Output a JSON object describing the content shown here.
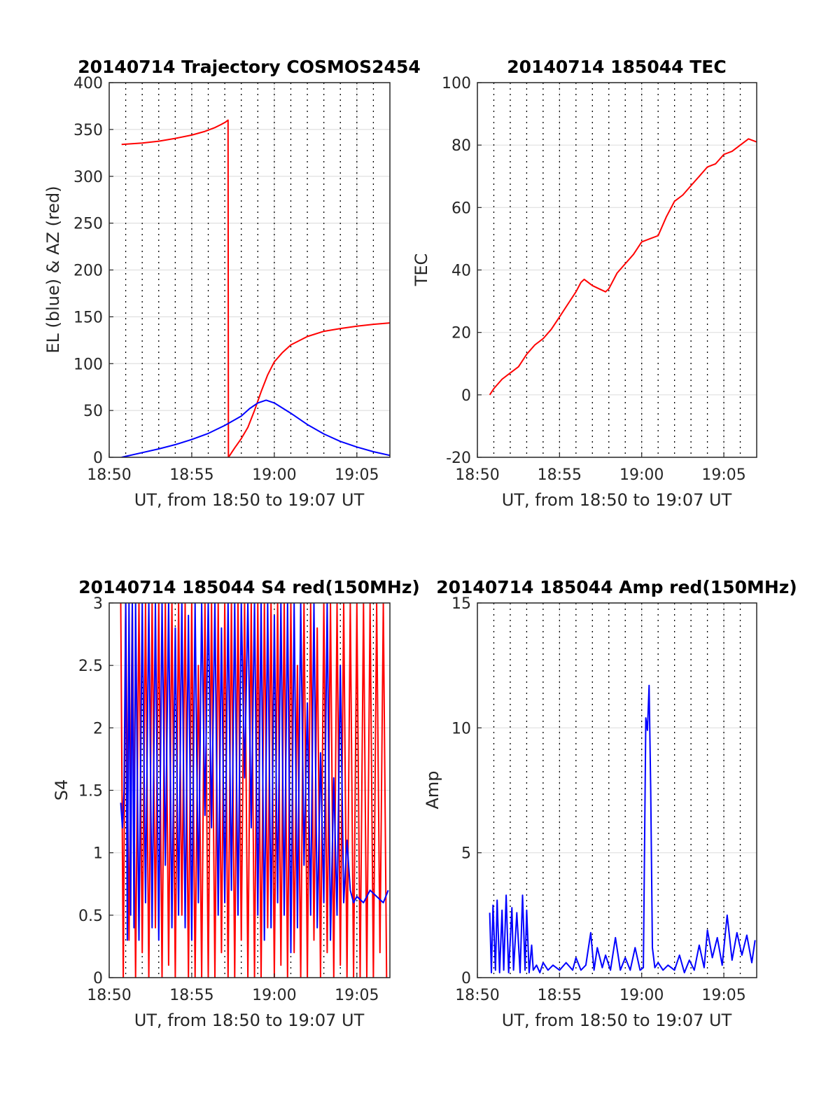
{
  "chart_data": [
    {
      "type": "line",
      "title": "20140714 Trajectory COSMOS2454",
      "xlabel": "UT, from 18:50 to 19:07 UT",
      "ylabel": "EL (blue) & AZ (red)",
      "xlim": [
        0,
        17
      ],
      "ylim": [
        0,
        400
      ],
      "xticks": [
        0,
        5,
        10,
        15
      ],
      "xtick_labels": [
        "18:50",
        "18:55",
        "19:00",
        "19:05"
      ],
      "yticks": [
        0,
        50,
        100,
        150,
        200,
        250,
        300,
        350,
        400
      ],
      "ytick_labels": [
        "0",
        "50",
        "100",
        "150",
        "200",
        "250",
        "300",
        "350",
        "400"
      ],
      "grid": true,
      "dotted_vlines_every_min": 1,
      "series": [
        {
          "color": "#ff0000",
          "x": [
            0.75,
            2,
            3,
            4,
            5,
            5.8,
            6.4,
            6.8,
            7.05,
            7.2,
            7.22,
            7.3,
            7.6,
            8.0,
            8.4,
            8.8,
            9.2,
            9.6,
            10,
            10.5,
            11,
            12,
            13,
            14,
            15,
            16,
            17
          ],
          "y": [
            334,
            335.5,
            337.5,
            340.5,
            344,
            348,
            352,
            355.5,
            358,
            360,
            0,
            2,
            10,
            20,
            32,
            50,
            70,
            88,
            102,
            112,
            120,
            129,
            134.5,
            137.5,
            140,
            142,
            143.5
          ]
        },
        {
          "color": "#0000ff",
          "x": [
            0.75,
            2,
            3,
            4,
            5,
            6,
            7,
            8,
            8.5,
            9,
            9.5,
            10,
            11,
            12,
            13,
            14,
            15,
            16,
            17
          ],
          "y": [
            0,
            5,
            9,
            13.5,
            19,
            25.5,
            34,
            44,
            52,
            58,
            61,
            58,
            47,
            35,
            25,
            17,
            11,
            6,
            2
          ]
        }
      ]
    },
    {
      "type": "line",
      "title": "20140714 185044 TEC",
      "xlabel": "UT, from 18:50 to 19:07 UT",
      "ylabel": "TEC",
      "xlim": [
        0,
        17
      ],
      "ylim": [
        -20,
        100
      ],
      "xticks": [
        0,
        5,
        10,
        15
      ],
      "xtick_labels": [
        "18:50",
        "18:55",
        "19:00",
        "19:05"
      ],
      "yticks": [
        -20,
        0,
        20,
        40,
        60,
        80,
        100
      ],
      "ytick_labels": [
        "-20",
        "0",
        "20",
        "40",
        "60",
        "80",
        "100"
      ],
      "grid": true,
      "dotted_vlines_every_min": 1,
      "series": [
        {
          "color": "#ff0000",
          "x": [
            0.75,
            1,
            1.5,
            2,
            2.5,
            3,
            3.5,
            4,
            4.5,
            5,
            5.5,
            6,
            6.3,
            6.5,
            7,
            7.4,
            7.8,
            8,
            8.5,
            9,
            9.5,
            10,
            10.5,
            11,
            11.5,
            12,
            12.5,
            13,
            13.5,
            14,
            14.5,
            15,
            15.5,
            16,
            16.5,
            17
          ],
          "y": [
            0,
            2,
            5,
            7,
            9,
            13,
            16,
            18,
            21,
            25,
            29,
            33,
            36,
            37,
            35,
            34,
            33,
            34,
            39,
            42,
            45,
            49,
            50,
            51,
            57,
            62,
            64,
            67,
            70,
            73,
            74,
            77,
            78,
            80,
            82,
            81
          ]
        }
      ]
    },
    {
      "type": "line",
      "title": "20140714 185044 S4 red(150MHz)",
      "xlabel": "UT, from 18:50 to 19:07 UT",
      "ylabel": "S4",
      "xlim": [
        0,
        17
      ],
      "ylim": [
        0,
        3
      ],
      "xticks": [
        0,
        5,
        10,
        15
      ],
      "xtick_labels": [
        "18:50",
        "18:55",
        "19:00",
        "19:05"
      ],
      "yticks": [
        0,
        0.5,
        1,
        1.5,
        2,
        2.5,
        3
      ],
      "ytick_labels": [
        "0",
        "0.5",
        "1",
        "1.5",
        "2",
        "2.5",
        "3"
      ],
      "grid": true,
      "dotted_vlines_every_min": 1,
      "series": [
        {
          "color": "#ff0000",
          "x": [
            0.7,
            0.85,
            1.0,
            1.2,
            1.4,
            1.6,
            1.8,
            2.0,
            2.2,
            2.4,
            2.6,
            2.8,
            3.0,
            3.2,
            3.4,
            3.6,
            3.8,
            4.0,
            4.2,
            4.4,
            4.6,
            4.8,
            5.0,
            5.2,
            5.4,
            5.6,
            5.8,
            6.0,
            6.2,
            6.4,
            6.6,
            6.8,
            7.0,
            7.2,
            7.4,
            7.6,
            7.8,
            8.0,
            8.2,
            8.4,
            8.6,
            8.8,
            9.0,
            9.2,
            9.4,
            9.6,
            9.8,
            10.0,
            10.2,
            10.4,
            10.6,
            10.8,
            11.0,
            11.2,
            11.4,
            11.6,
            11.8,
            12.0,
            12.2,
            12.4,
            12.6,
            12.8,
            13.0,
            13.2,
            13.4,
            13.6,
            13.8,
            14.0,
            14.2,
            14.4,
            14.6,
            14.8,
            15.0,
            15.2,
            15.4,
            15.6,
            15.8,
            16.0,
            16.2,
            16.4,
            16.6,
            16.8
          ],
          "y": [
            3,
            0,
            3,
            0.3,
            3,
            0,
            3,
            0.2,
            3,
            0,
            3,
            0.4,
            3,
            0,
            3,
            0.1,
            3,
            0,
            3,
            0.5,
            3,
            0,
            3,
            0,
            2.5,
            0,
            3,
            0,
            3,
            0,
            3,
            0.2,
            3,
            0,
            3,
            0,
            3,
            0.3,
            3,
            0,
            3,
            0,
            3,
            0,
            3,
            0.4,
            3,
            0,
            3,
            0.1,
            3,
            0,
            3,
            0.2,
            2.5,
            0,
            3,
            0,
            3,
            0.3,
            2.8,
            0,
            3,
            0.2,
            3,
            0,
            3,
            0.1,
            3,
            0,
            3,
            0,
            3,
            0,
            3,
            0,
            3,
            0,
            3,
            0.2,
            3,
            0
          ]
        },
        {
          "color": "#0000ff",
          "x": [
            0.7,
            0.8,
            0.9,
            1.0,
            1.1,
            1.2,
            1.3,
            1.4,
            1.5,
            1.6,
            1.8,
            2.0,
            2.2,
            2.4,
            2.6,
            2.8,
            3.0,
            3.2,
            3.4,
            3.6,
            3.8,
            4.0,
            4.2,
            4.4,
            4.6,
            4.8,
            5.0,
            5.2,
            5.4,
            5.6,
            5.8,
            6.0,
            6.2,
            6.4,
            6.6,
            6.8,
            7.0,
            7.2,
            7.4,
            7.6,
            7.8,
            8.0,
            8.2,
            8.4,
            8.6,
            8.8,
            9.0,
            9.2,
            9.4,
            9.6,
            9.8,
            10.0,
            10.2,
            10.4,
            10.6,
            10.8,
            11.0,
            11.2,
            11.4,
            11.6,
            11.8,
            12.0,
            12.2,
            12.4,
            12.6,
            12.8,
            13.0,
            13.2,
            13.4,
            13.6,
            13.8,
            14.0,
            14.2,
            14.4,
            14.6,
            14.8,
            15.0,
            15.4,
            15.8,
            16.2,
            16.6,
            16.9
          ],
          "y": [
            1.4,
            1.2,
            1.5,
            3,
            0.3,
            3,
            0.5,
            3,
            0.4,
            3,
            0.3,
            3,
            0.6,
            3,
            0.4,
            3,
            0.3,
            3,
            0.9,
            3,
            0.4,
            2.8,
            0.5,
            3,
            0.4,
            2.9,
            0.3,
            3,
            0.6,
            3,
            1.3,
            3,
            1.2,
            3,
            0.5,
            2.8,
            0.6,
            3,
            0.7,
            3,
            0.5,
            3,
            1.6,
            3,
            1.2,
            3,
            0.5,
            3,
            0.3,
            3,
            0.4,
            2.9,
            0.6,
            3,
            0.5,
            3,
            0.2,
            3,
            0.4,
            3,
            0.9,
            2.2,
            0.5,
            3,
            0.4,
            1.8,
            0.6,
            3,
            0.3,
            1.6,
            0.5,
            2.5,
            0.6,
            1.1,
            0.7,
            0.6,
            0.65,
            0.6,
            0.7,
            0.65,
            0.6,
            0.7
          ]
        }
      ]
    },
    {
      "type": "line",
      "title": "20140714 185044 Amp red(150MHz)",
      "xlabel": "UT, from 18:50 to 19:07 UT",
      "ylabel": "Amp",
      "xlim": [
        0,
        17
      ],
      "ylim": [
        0,
        15
      ],
      "xticks": [
        0,
        5,
        10,
        15
      ],
      "xtick_labels": [
        "18:50",
        "18:55",
        "19:00",
        "19:05"
      ],
      "yticks": [
        0,
        5,
        10,
        15
      ],
      "ytick_labels": [
        "0",
        "5",
        "10",
        "15"
      ],
      "grid": true,
      "dotted_vlines_every_min": 1,
      "series": [
        {
          "color": "#0000ff",
          "x": [
            0.75,
            0.85,
            0.95,
            1.1,
            1.2,
            1.35,
            1.5,
            1.6,
            1.75,
            1.9,
            2.1,
            2.2,
            2.4,
            2.6,
            2.75,
            2.9,
            3.0,
            3.15,
            3.3,
            3.4,
            3.6,
            3.8,
            4.0,
            4.3,
            4.6,
            5.0,
            5.4,
            5.8,
            6.0,
            6.3,
            6.6,
            6.9,
            7.1,
            7.3,
            7.6,
            7.8,
            8.1,
            8.4,
            8.7,
            9.0,
            9.3,
            9.6,
            9.9,
            10.1,
            10.25,
            10.35,
            10.45,
            10.55,
            10.65,
            10.8,
            11.0,
            11.3,
            11.6,
            12.0,
            12.3,
            12.6,
            12.9,
            13.2,
            13.5,
            13.8,
            14.0,
            14.3,
            14.6,
            14.9,
            15.2,
            15.5,
            15.8,
            16.1,
            16.4,
            16.7,
            16.9
          ],
          "y": [
            2.6,
            0.2,
            2.9,
            0.3,
            3.1,
            0.2,
            2.7,
            0.3,
            3.3,
            0.2,
            2.8,
            0.3,
            2.6,
            0.2,
            3.3,
            0.3,
            2.7,
            0.2,
            1.3,
            0.3,
            0.5,
            0.2,
            0.6,
            0.3,
            0.5,
            0.3,
            0.6,
            0.3,
            0.8,
            0.3,
            0.5,
            1.8,
            0.3,
            1.2,
            0.4,
            0.9,
            0.3,
            1.6,
            0.3,
            0.8,
            0.3,
            1.2,
            0.3,
            0.4,
            10.4,
            9.9,
            11.7,
            7.5,
            1.2,
            0.4,
            0.6,
            0.3,
            0.5,
            0.3,
            0.9,
            0.2,
            0.7,
            0.3,
            1.3,
            0.4,
            1.9,
            0.8,
            1.6,
            0.5,
            2.5,
            0.7,
            1.8,
            0.9,
            1.7,
            0.6,
            1.5
          ]
        }
      ]
    }
  ]
}
